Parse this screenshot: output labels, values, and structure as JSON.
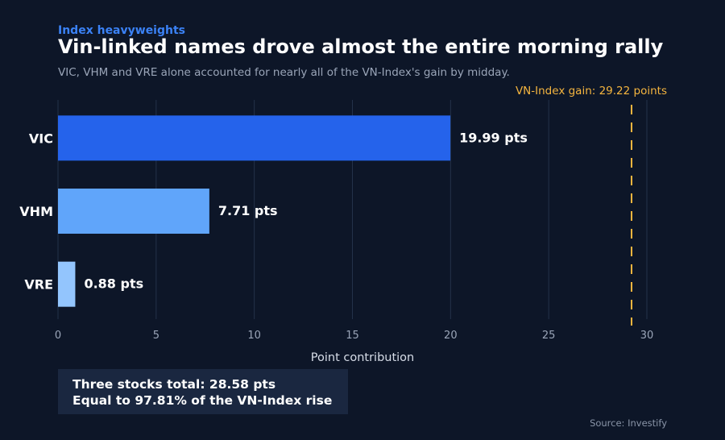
{
  "kicker": "Index heavyweights",
  "title": "Vin-linked names drove almost the entire morning rally",
  "subtitle": "VIC, VHM and VRE alone accounted for nearly all of the VN-Index's gain by midday.",
  "summary": {
    "line1": "Three stocks total: 28.58 pts",
    "line2": "Equal to 97.81% of the VN-Index rise"
  },
  "source": "Source: Investify",
  "colors": {
    "background": "#0d1628",
    "vic": "#2563eb",
    "vhm": "#60a5fa",
    "vre": "#93c5fd",
    "reference": "#f5b53f",
    "grid": "#24324a"
  },
  "chart_data": {
    "type": "bar",
    "orientation": "horizontal",
    "categories": [
      "VIC",
      "VHM",
      "VRE"
    ],
    "values": [
      19.99,
      7.71,
      0.88
    ],
    "data_labels": [
      "19.99 pts",
      "7.71 pts",
      "0.88 pts"
    ],
    "xlabel": "Point contribution",
    "ylabel": "",
    "xlim": [
      0,
      30
    ],
    "xticks": [
      0,
      5,
      10,
      15,
      20,
      25,
      30
    ],
    "grid": true,
    "reference_line": {
      "value": 29.22,
      "label": "VN-Index gain: 29.22 points",
      "style": "dashed"
    }
  }
}
